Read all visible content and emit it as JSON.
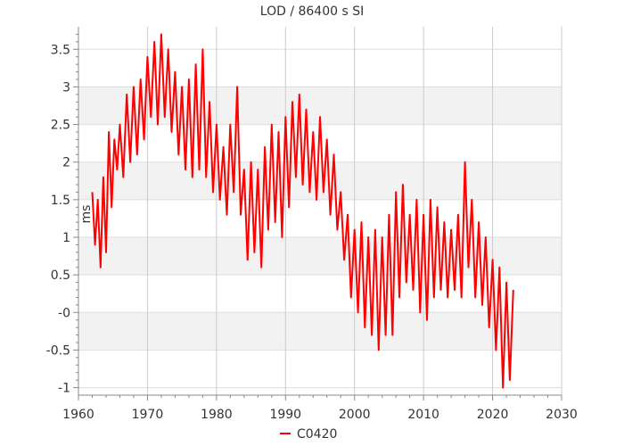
{
  "chart_data": {
    "type": "line",
    "title": "LOD / 86400 s SI",
    "xlabel": "",
    "ylabel": "ms",
    "xlim": [
      1960,
      2030
    ],
    "ylim": [
      -1.1,
      3.8
    ],
    "xticks": [
      "1960",
      "1970",
      "1980",
      "1990",
      "2000",
      "2010",
      "2020",
      "2030"
    ],
    "yticks": [
      "3.5",
      "3",
      "2.5",
      "2",
      "1.5",
      "1",
      "0.5",
      "-0",
      "-0.5",
      "-1"
    ],
    "grid": true,
    "legend_position": "bottom-center",
    "series": [
      {
        "name": "C0420",
        "color": "#ff0000",
        "x": [
          1962.0,
          1962.4,
          1962.8,
          1963.2,
          1963.6,
          1964.0,
          1964.4,
          1964.8,
          1965.2,
          1965.6,
          1966.0,
          1966.5,
          1967.0,
          1967.5,
          1968.0,
          1968.5,
          1969.0,
          1969.5,
          1970.0,
          1970.5,
          1971.0,
          1971.5,
          1972.0,
          1972.5,
          1973.0,
          1973.5,
          1974.0,
          1974.5,
          1975.0,
          1975.5,
          1976.0,
          1976.5,
          1977.0,
          1977.5,
          1978.0,
          1978.5,
          1979.0,
          1979.5,
          1980.0,
          1980.5,
          1981.0,
          1981.5,
          1982.0,
          1982.5,
          1983.0,
          1983.5,
          1984.0,
          1984.5,
          1985.0,
          1985.5,
          1986.0,
          1986.5,
          1987.0,
          1987.5,
          1988.0,
          1988.5,
          1989.0,
          1989.5,
          1990.0,
          1990.5,
          1991.0,
          1991.5,
          1992.0,
          1992.5,
          1993.0,
          1993.5,
          1994.0,
          1994.5,
          1995.0,
          1995.5,
          1996.0,
          1996.5,
          1997.0,
          1997.5,
          1998.0,
          1998.5,
          1999.0,
          1999.5,
          2000.0,
          2000.5,
          2001.0,
          2001.5,
          2002.0,
          2002.5,
          2003.0,
          2003.5,
          2004.0,
          2004.5,
          2005.0,
          2005.5,
          2006.0,
          2006.5,
          2007.0,
          2007.5,
          2008.0,
          2008.5,
          2009.0,
          2009.5,
          2010.0,
          2010.5,
          2011.0,
          2011.5,
          2012.0,
          2012.5,
          2013.0,
          2013.5,
          2014.0,
          2014.5,
          2015.0,
          2015.5,
          2016.0,
          2016.5,
          2017.0,
          2017.5,
          2018.0,
          2018.5,
          2019.0,
          2019.5,
          2020.0,
          2020.5,
          2021.0,
          2021.5,
          2022.0,
          2022.5,
          2023.0
        ],
        "y": [
          1.6,
          0.9,
          1.5,
          0.6,
          1.8,
          0.8,
          2.4,
          1.4,
          2.3,
          1.9,
          2.5,
          1.8,
          2.9,
          2.0,
          3.0,
          2.1,
          3.1,
          2.3,
          3.4,
          2.6,
          3.6,
          2.5,
          3.7,
          2.6,
          3.5,
          2.4,
          3.2,
          2.1,
          3.0,
          1.9,
          3.1,
          1.8,
          3.3,
          1.9,
          3.5,
          1.8,
          2.8,
          1.6,
          2.5,
          1.5,
          2.2,
          1.3,
          2.5,
          1.6,
          3.0,
          1.3,
          1.9,
          0.7,
          2.0,
          0.8,
          1.9,
          0.6,
          2.2,
          1.1,
          2.5,
          1.2,
          2.4,
          1.0,
          2.6,
          1.4,
          2.8,
          1.8,
          2.9,
          1.7,
          2.7,
          1.6,
          2.4,
          1.5,
          2.6,
          1.6,
          2.3,
          1.3,
          2.1,
          1.1,
          1.6,
          0.7,
          1.3,
          0.2,
          1.1,
          0.0,
          1.2,
          -0.2,
          1.0,
          -0.3,
          1.1,
          -0.5,
          1.0,
          -0.3,
          1.3,
          -0.3,
          1.6,
          0.2,
          1.7,
          0.4,
          1.3,
          0.3,
          1.5,
          0.0,
          1.3,
          -0.1,
          1.5,
          0.2,
          1.4,
          0.3,
          1.2,
          0.2,
          1.1,
          0.3,
          1.3,
          0.2,
          2.0,
          0.6,
          1.5,
          0.2,
          1.2,
          0.1,
          1.0,
          -0.2,
          0.7,
          -0.5,
          0.6,
          -1.0,
          0.4,
          -0.9,
          0.3
        ]
      }
    ]
  }
}
